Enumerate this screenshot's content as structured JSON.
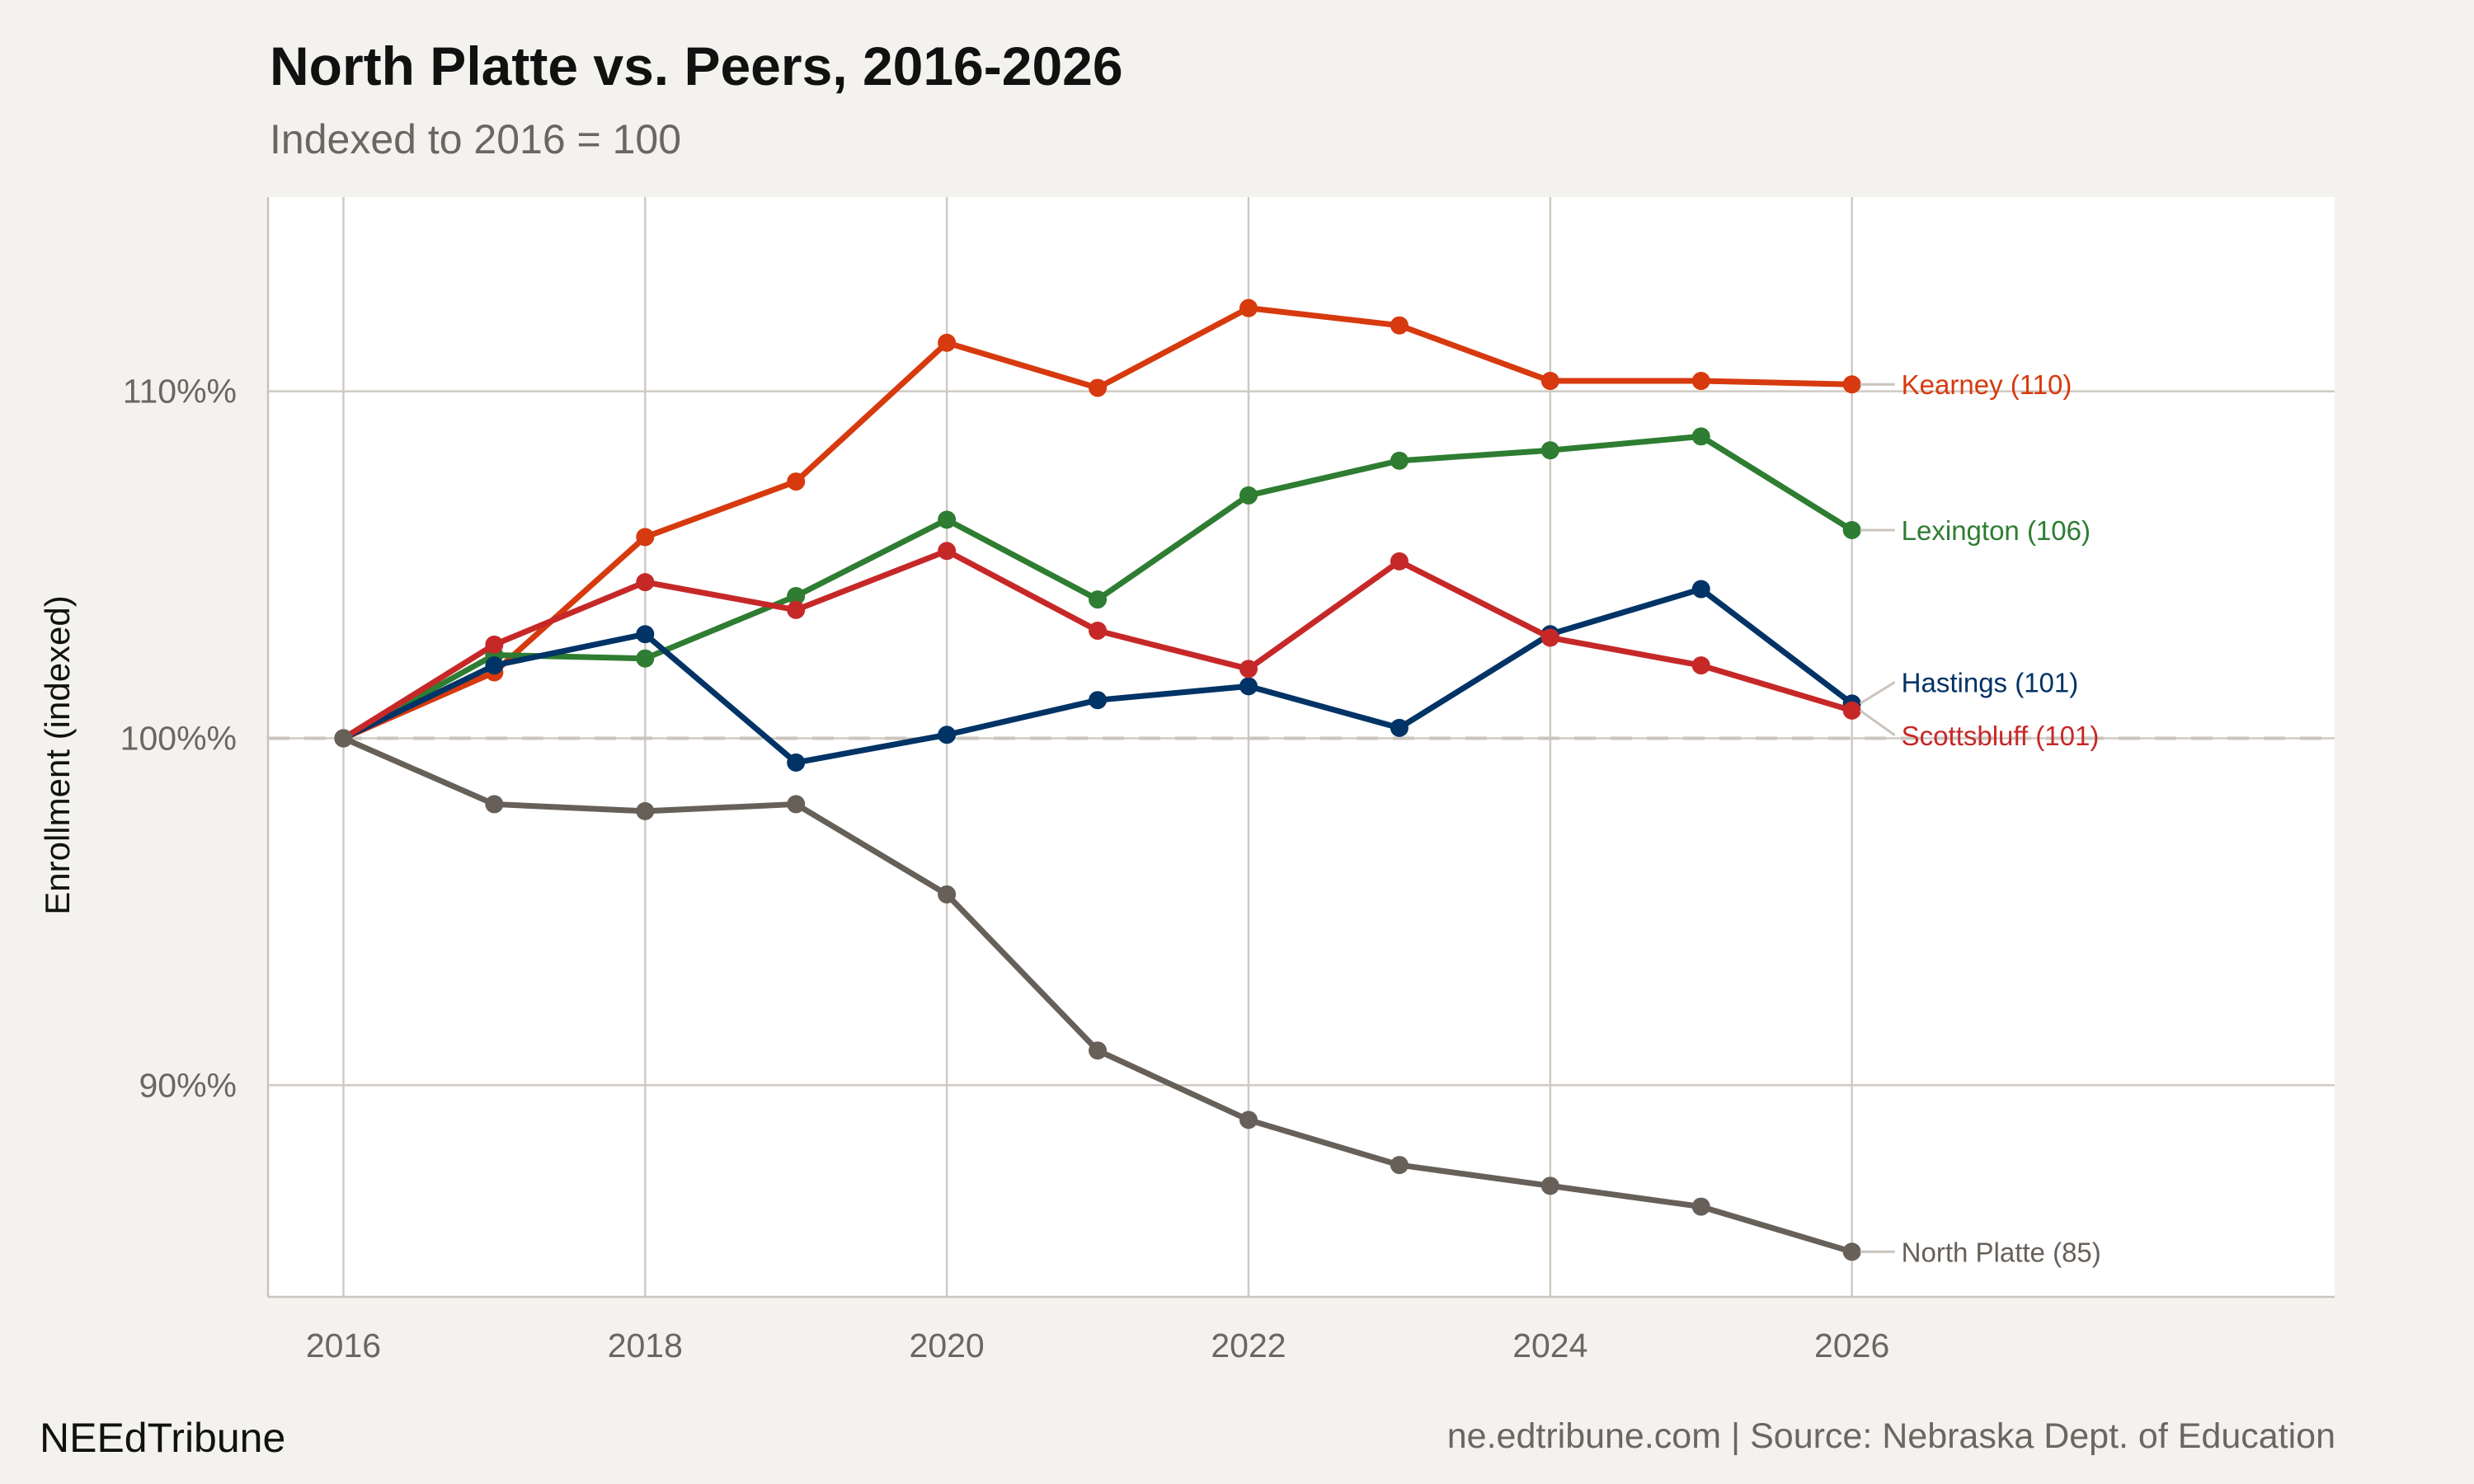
{
  "chart_data": {
    "type": "line",
    "title": "North Platte vs. Peers, 2016-2026",
    "subtitle": "Indexed to 2016 = 100",
    "xlabel": "",
    "ylabel": "Enrollment (indexed)",
    "x": [
      2016,
      2017,
      2018,
      2019,
      2020,
      2021,
      2022,
      2023,
      2024,
      2025,
      2026
    ],
    "xlim": [
      2015.5,
      2029.2
    ],
    "ylim": [
      83.9,
      115.6
    ],
    "xticks": [
      2016,
      2018,
      2020,
      2022,
      2024,
      2026
    ],
    "xtick_labels": [
      "2016",
      "2018",
      "2020",
      "2022",
      "2024",
      "2026"
    ],
    "yticks": [
      90,
      100,
      110
    ],
    "ytick_labels": [
      "90%%",
      "100%%",
      "110%%"
    ],
    "grid": true,
    "reference_line": {
      "y": 100,
      "style": "dashed"
    },
    "legend": "direct labels at line ends",
    "series": [
      {
        "name": "Kearney",
        "end_label": "Kearney (110)",
        "color": "#D63A0E",
        "values": [
          100,
          101.9,
          105.8,
          107.4,
          111.4,
          110.1,
          112.4,
          111.9,
          110.3,
          110.3,
          110.2
        ]
      },
      {
        "name": "Lexington",
        "end_label": "Lexington (106)",
        "color": "#2E7D32",
        "values": [
          100,
          102.4,
          102.3,
          104.1,
          106.3,
          104.0,
          107.0,
          108.0,
          108.3,
          108.7,
          106.0
        ]
      },
      {
        "name": "Hastings",
        "end_label": "Hastings (101)",
        "color": "#003366",
        "values": [
          100,
          102.1,
          103.0,
          99.3,
          100.1,
          101.1,
          101.5,
          100.3,
          103.0,
          104.3,
          101.0
        ]
      },
      {
        "name": "Scottsbluff",
        "end_label": "Scottsbluff (101)",
        "color": "#C62828",
        "values": [
          100,
          102.7,
          104.5,
          103.7,
          105.4,
          103.1,
          102.0,
          105.1,
          102.9,
          102.1,
          100.8
        ]
      },
      {
        "name": "North Platte",
        "end_label": "North Platte (85)",
        "color": "#666059",
        "values": [
          100,
          98.1,
          97.9,
          98.1,
          95.5,
          91.0,
          89.0,
          87.7,
          87.1,
          86.5,
          85.2
        ]
      }
    ]
  },
  "footer": {
    "brand": "NEEdTribune",
    "source": "ne.edtribune.com | Source: Nebraska Dept. of Education"
  }
}
